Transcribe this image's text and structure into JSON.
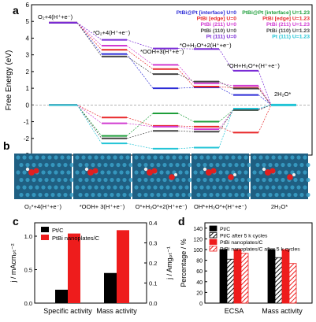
{
  "chart_data": [
    {
      "panel": "a",
      "type": "line",
      "ylabel": "Free Energy (eV)",
      "ylim": [
        -3,
        6
      ],
      "yticks": [
        -3,
        -2,
        -1,
        0,
        1,
        2,
        3,
        4,
        5,
        6
      ],
      "steps": [
        "O2+4(H++e-)",
        "*O2+4(H++e-)",
        "*OOH+3(H++e-)",
        "*O+H2O*+2(H++e-)",
        "*OH+H2O*+(H++e-)",
        "2H2O*"
      ],
      "annotations": [
        {
          "text": "O₂+4(H⁺+e⁻)"
        },
        {
          "text": "*O₂+4(H⁺+e⁻)"
        },
        {
          "text": "*OOH+3(H⁺+e⁻)"
        },
        {
          "text": "*O+H₂O*+2(H⁺+e⁻)"
        },
        {
          "text": "*OH+H₂O*+(H⁺+e⁻)"
        },
        {
          "text": "2H₂O*"
        }
      ],
      "series": [
        {
          "name": "PtBi@Pt [interface] U=0",
          "color": "#2b2bd6",
          "values": [
            4.92,
            3.05,
            1.0,
            1.05,
            0.6,
            0
          ]
        },
        {
          "name": "PtBi [edge] U=0",
          "color": "#e8282a",
          "values": [
            4.92,
            3.3,
            2.15,
            1.1,
            1.02,
            0
          ]
        },
        {
          "name": "PtBi (211) U=0",
          "color": "#d13bd1",
          "values": [
            4.92,
            3.55,
            2.4,
            1.3,
            1.15,
            0
          ]
        },
        {
          "name": "PtBi (110) U=0",
          "color": "#444444",
          "values": [
            4.92,
            2.9,
            1.85,
            1.4,
            0.98,
            0
          ]
        },
        {
          "name": "Pt (111) U=0",
          "color": "#7a2bd6",
          "values": [
            4.92,
            3.9,
            3.38,
            3.35,
            2.05,
            0
          ]
        },
        {
          "name": "PtBi@Pt [interface] U=1.23",
          "color": "#1e9e3a",
          "values": [
            0,
            -1.85,
            -0.5,
            -1.0,
            -0.3,
            0
          ]
        },
        {
          "name": "PtBi [edge] U=1.23",
          "color": "#e8282a",
          "values": [
            0,
            -0.75,
            -1.25,
            -1.3,
            -1.65,
            0
          ]
        },
        {
          "name": "PtBi (211) U=1.23",
          "color": "#d13bd1",
          "values": [
            0,
            -1.1,
            -1.3,
            -1.45,
            -0.28,
            0
          ]
        },
        {
          "name": "PtBi (110) U=1.23",
          "color": "#444444",
          "values": [
            0,
            -2.0,
            -1.55,
            -1.6,
            -0.3,
            0
          ]
        },
        {
          "name": "Pt (111) U=1.23",
          "color": "#22c4d6",
          "values": [
            0,
            -2.3,
            -2.62,
            -2.55,
            -0.22,
            0
          ]
        }
      ],
      "legend_left": [
        {
          "name": "PtBi@Pt [interface] U=0",
          "color": "#2b2bd6"
        },
        {
          "name": "PtBi [edge] U=0",
          "color": "#e8282a"
        },
        {
          "name": "PtBi (211) U=0",
          "color": "#d13bd1"
        },
        {
          "name": "PtBi (110) U=0",
          "color": "#444444"
        },
        {
          "name": "Pt (111) U=0",
          "color": "#7a2bd6"
        }
      ],
      "legend_right": [
        {
          "name": "PtBi@Pt [interface] U=1.23",
          "color": "#1e9e3a"
        },
        {
          "name": "PtBi [edge] U=1.23",
          "color": "#e8282a"
        },
        {
          "name": "PtBi (211) U=1.23",
          "color": "#d13bd1"
        },
        {
          "name": "PtBi (110) U=1.23",
          "color": "#444444"
        },
        {
          "name": "Pt (111) U=1.23",
          "color": "#22c4d6"
        }
      ],
      "legend_placement": "top-right"
    },
    {
      "panel": "c",
      "type": "bar",
      "categories": [
        "Specific activity",
        "Mass activity"
      ],
      "series": [
        {
          "name": "Pt/C",
          "color": "#000000",
          "values": [
            0.2,
            0.45
          ]
        },
        {
          "name": "PtBi nanoplates/C",
          "color": "#ee1c1c",
          "values": [
            1.04,
            1.09
          ]
        }
      ],
      "ylabel_left": "j / mAcmₚₜ⁻²",
      "ylabel_right": "j / Amgₚₜ⁻¹",
      "ylim_left": [
        0,
        1.2
      ],
      "yticks_left": [
        "0.0",
        "0.5",
        "1.0"
      ],
      "ylim_right": [
        0,
        0.4
      ],
      "yticks_right": [
        "0.0",
        "0.1",
        "0.2",
        "0.3",
        "0.4"
      ],
      "legend_placement": "top-left"
    },
    {
      "panel": "d",
      "type": "bar",
      "categories": [
        "ECSA",
        "Mass activity"
      ],
      "series": [
        {
          "name": "Pt/C",
          "color": "#000000",
          "pattern": "solid",
          "values": [
            100,
            100
          ]
        },
        {
          "name": "Pt/C after 5 k cycles",
          "color": "#000000",
          "pattern": "hatch",
          "values": [
            82,
            85
          ]
        },
        {
          "name": "PtBi nanoplates/C",
          "color": "#ee1c1c",
          "pattern": "solid",
          "values": [
            100,
            100
          ]
        },
        {
          "name": "PtBi nanoplates/C after 5 k cycles",
          "color": "#ee1c1c",
          "pattern": "hatch",
          "values": [
            93,
            74
          ]
        }
      ],
      "ylabel": "Percentage / %",
      "ylim": [
        0,
        150
      ],
      "yticks": [
        "0",
        "20",
        "40",
        "60",
        "80",
        "100",
        "120",
        "140"
      ],
      "legend_placement": "top-left"
    }
  ],
  "panel_labels": {
    "a": "a",
    "b": "b",
    "c": "c",
    "d": "d"
  },
  "panel_b": {
    "captions": [
      {
        "text": "O₂*+4(H⁺+e⁻)"
      },
      {
        "text": "*OOH+ 3(H⁺+e⁻)"
      },
      {
        "text": "O*+H₂O*+2(H⁺+e⁻)"
      },
      {
        "text": "OH*+H₂O*+(H⁺+e⁻)"
      },
      {
        "text": "2H₂O*"
      }
    ],
    "surface_color": "#1f5f82",
    "atom_color": "#3aa0c8",
    "oxygen_color": "#e02020",
    "hydrogen_color": "#f0f0f0"
  }
}
